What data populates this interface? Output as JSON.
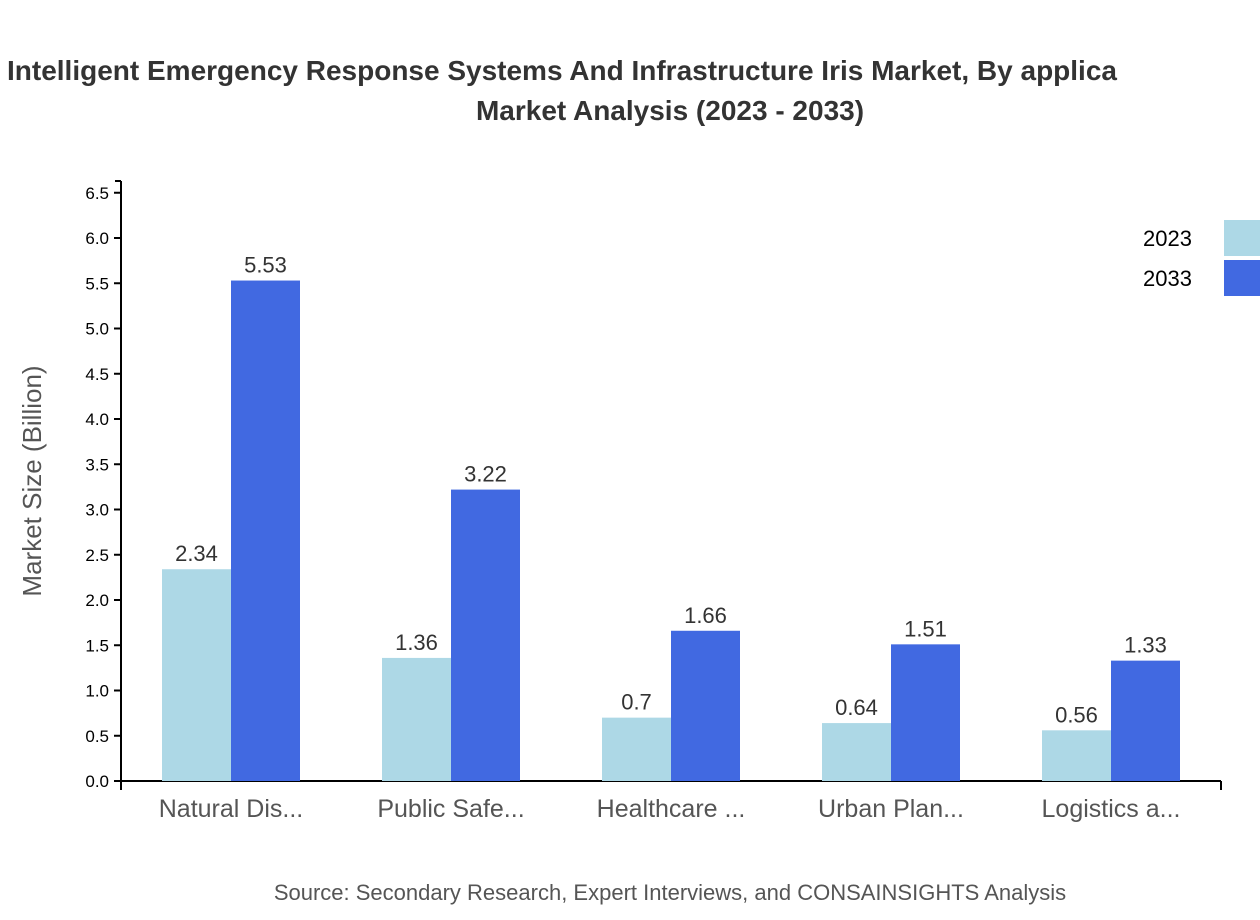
{
  "chart_data": {
    "type": "bar",
    "title_line1": "Intelligent Emergency Response Systems And Infrastructure Iris Market, By applica",
    "title_line2": "Market Analysis (2023 - 2033)",
    "ylabel": "Market Size (Billion)",
    "xlabel": "",
    "ylim": [
      0,
      6.5
    ],
    "yticks": [
      "0.0",
      "0.5",
      "1.0",
      "1.5",
      "2.0",
      "2.5",
      "3.0",
      "3.5",
      "4.0",
      "4.5",
      "5.0",
      "5.5",
      "6.0",
      "6.5"
    ],
    "categories": [
      "Natural Dis...",
      "Public Safe...",
      "Healthcare ...",
      "Urban Plan...",
      "Logistics a..."
    ],
    "series": [
      {
        "name": "2023",
        "color": "#add8e6",
        "values": [
          2.34,
          1.36,
          0.7,
          0.64,
          0.56
        ],
        "labels": [
          "2.34",
          "1.36",
          "0.7",
          "0.64",
          "0.56"
        ]
      },
      {
        "name": "2033",
        "color": "#4169e1",
        "values": [
          5.53,
          3.22,
          1.66,
          1.51,
          1.33
        ],
        "labels": [
          "5.53",
          "3.22",
          "1.66",
          "1.51",
          "1.33"
        ]
      }
    ],
    "grid": false,
    "legend_position": "top-right",
    "source": "Source: Secondary Research, Expert Interviews, and CONSAINSIGHTS Analysis"
  }
}
